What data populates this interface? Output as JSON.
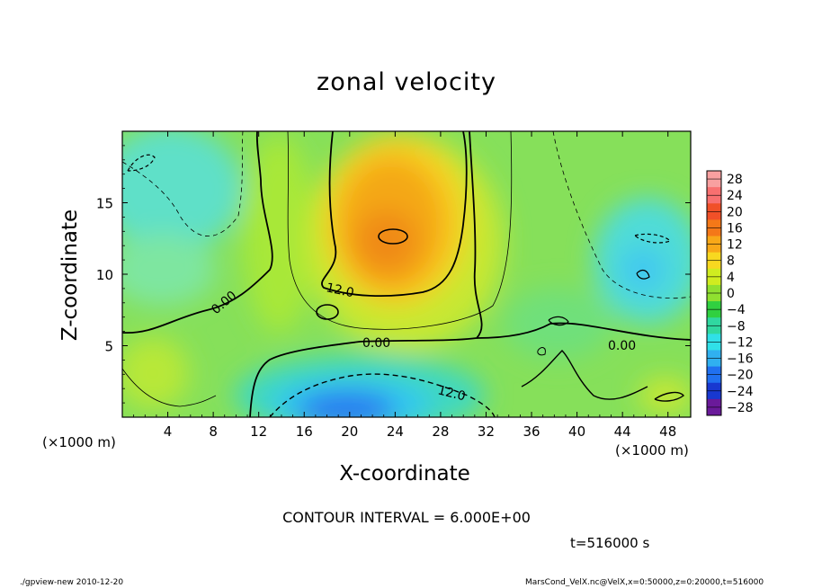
{
  "chart_data": {
    "type": "heatmap",
    "title": "zonal velocity",
    "xlabel": "X-coordinate",
    "ylabel": "Z-coordinate",
    "x_unit_label": "(×1000 m)",
    "x_ticks": [
      4,
      8,
      12,
      16,
      20,
      24,
      28,
      32,
      36,
      40,
      44,
      48
    ],
    "y_ticks": [
      5,
      10,
      15
    ],
    "xlim": [
      0,
      50
    ],
    "ylim": [
      0,
      20
    ],
    "colorbar": {
      "levels": [
        28,
        24,
        20,
        16,
        12,
        8,
        4,
        0,
        -4,
        -8,
        -12,
        -16,
        -20,
        -24,
        -28
      ],
      "labels": [
        "28",
        "24",
        "20",
        "16",
        "12",
        "8",
        "4",
        "0",
        "−4",
        "−8",
        "−12",
        "−16",
        "−20",
        "−24",
        "−28"
      ],
      "colors": [
        "#f8a0a0",
        "#f87070",
        "#f05028",
        "#f47818",
        "#f8a818",
        "#f8d820",
        "#d0ec20",
        "#90e030",
        "#30d040",
        "#30d8a0",
        "#30e0e8",
        "#30b0f0",
        "#2070f0",
        "#1838d0",
        "#6a1a9a"
      ]
    },
    "contour_interval": "CONTOUR INTERVAL = 6.000E+00",
    "contour_labels": [
      "12.0",
      "0.00",
      "0.00",
      "0.00",
      "12.0"
    ],
    "time": "t=516000 s",
    "grid": false
  },
  "footer": {
    "left": "./gpview-new  2010-12-20",
    "right": "MarsCond_VelX.nc@VelX,x=0:50000,z=0:20000,t=516000"
  },
  "colors": {
    "warm_core": "#f08a18",
    "cold_core": "#2a78f0",
    "background_field": "#7fe05a"
  }
}
